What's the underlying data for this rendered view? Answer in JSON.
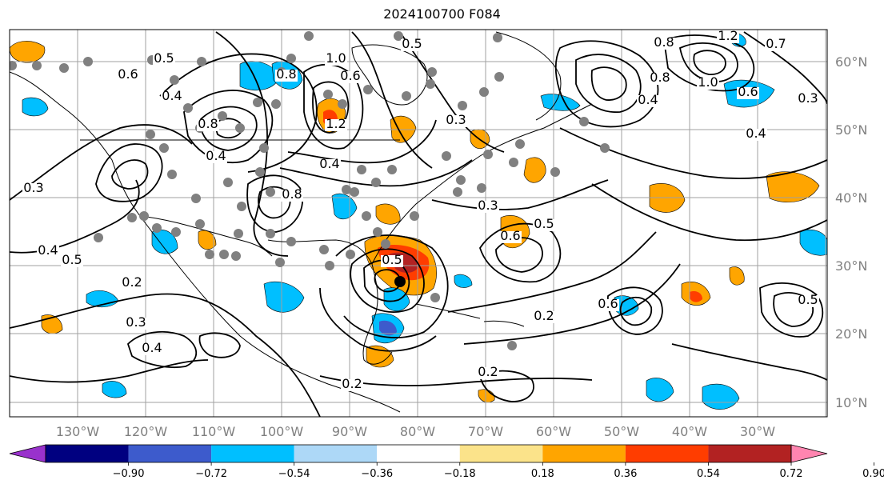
{
  "title": "2024100700 F084",
  "lat_labels": [
    "60°N",
    "50°N",
    "40°N",
    "30°N",
    "20°N",
    "10°N"
  ],
  "lon_labels": [
    "130°W",
    "120°W",
    "110°W",
    "100°W",
    "90°W",
    "80°W",
    "70°W",
    "60°W",
    "50°W",
    "40°W",
    "30°W"
  ],
  "colorbar": {
    "colors": [
      "#9932CC",
      "#000080",
      "#3D5BCC",
      "#00BFFF",
      "#ADD8F7",
      "#FFFFFF",
      "#FBE38A",
      "#FFA500",
      "#FF3D00",
      "#B22222",
      "#FF85B0"
    ],
    "ticks": [
      "−0.90",
      "−0.72",
      "−0.54",
      "−0.36",
      "−0.18",
      "0.18",
      "0.36",
      "0.54",
      "0.72",
      "0.90"
    ]
  },
  "contour_labels": [
    "0.8",
    "0.5",
    "1.2",
    "0.7",
    "0.6",
    "0.5",
    "0.8",
    "1.0",
    "0.6",
    "0.4",
    "0.3",
    "0.8",
    "0.4",
    "1.0",
    "0.8",
    "0.6",
    "1.2",
    "0.4",
    "0.3",
    "0.4",
    "0.5",
    "0.2",
    "0.3",
    "0.4",
    "0.8",
    "0.5",
    "0.3",
    "0.6",
    "0.5",
    "0.2",
    "0.4",
    "0.3",
    "0.2",
    "0.6",
    "0.5",
    "0.4",
    "0.2"
  ],
  "markers": {
    "dot_color": "#808080",
    "center_color": "#000000"
  }
}
